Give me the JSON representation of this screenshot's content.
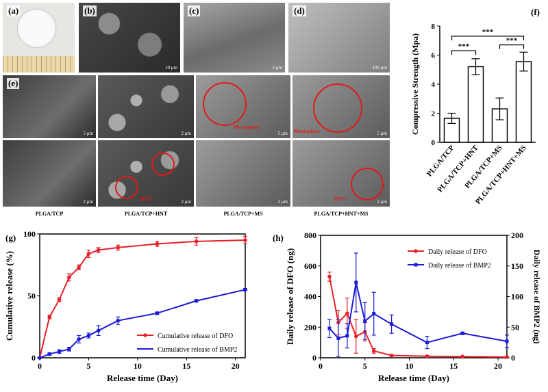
{
  "panels": {
    "a": {
      "label": "(a)"
    },
    "b": {
      "label": "(b)",
      "scale": "10 μm"
    },
    "c": {
      "label": "(c)",
      "scale": "2 μm"
    },
    "d": {
      "label": "(d)",
      "scale": "100 μm"
    },
    "e": {
      "label": "(e)"
    },
    "f": {
      "label": "(f)"
    },
    "g": {
      "label": "(g)"
    },
    "h": {
      "label": "(h)"
    }
  },
  "sem_grid": {
    "tags": {
      "microsphere": "Microsphere",
      "hnts": "HNTs"
    },
    "scales": {
      "s1": "5 μm",
      "s2": "2 μm",
      "s3": "5 μm",
      "s4": "5 μm",
      "s5": "2 μm",
      "s6": "2 μm",
      "s7": "2 μm",
      "s8": "2 μm"
    },
    "captions": [
      "PLGA/TCP",
      "PLGA/TCP+HNT",
      "PLGA/TCP+MS",
      "PLGA/TCP+HNT+MS"
    ]
  },
  "chart_data": [
    {
      "id": "f",
      "type": "bar",
      "categories": [
        "PLGA/TCP",
        "PLGA/TCP+HNT",
        "PLGA/TCP+MS",
        "PLGA/TCP+HNT+MS"
      ],
      "values": [
        1.65,
        5.2,
        2.3,
        5.55
      ],
      "errors": [
        0.35,
        0.55,
        0.75,
        0.65
      ],
      "ylabel": "Compressive Strength (Mpa)",
      "ylim": [
        0,
        8
      ],
      "yticks": [
        "0",
        "2",
        "4",
        "6",
        "8"
      ],
      "significance": "***",
      "colors": {
        "bar": "#ffffff",
        "stroke": "#000000"
      }
    },
    {
      "id": "g",
      "type": "line",
      "xlabel": "Release time (Day)",
      "ylabel": "Cumulative release (%)",
      "xlim": [
        0,
        21
      ],
      "ylim": [
        0,
        100
      ],
      "xticks": [
        "0",
        "5",
        "10",
        "15",
        "20"
      ],
      "yticks": [
        "0",
        "50",
        "100"
      ],
      "legend_position": "bottom-right",
      "series": [
        {
          "name": "Cumulative release of DFO",
          "color": "#e8202a",
          "x": [
            0,
            1,
            2,
            3,
            4,
            5,
            6,
            8,
            12,
            16,
            21
          ],
          "y": [
            0,
            33,
            47,
            65,
            73,
            84,
            87,
            89,
            92,
            94,
            95
          ],
          "err": [
            0,
            1.5,
            1.5,
            3,
            2,
            3,
            2,
            2,
            2,
            3,
            3
          ]
        },
        {
          "name": "Cumulative release of BMP2",
          "color": "#1a1ad8",
          "x": [
            0,
            1,
            2,
            3,
            4,
            5,
            6,
            8,
            12,
            16,
            21
          ],
          "y": [
            0,
            3,
            5,
            7,
            15,
            18,
            22,
            30,
            36,
            46,
            55
          ],
          "err": [
            0,
            1,
            1.5,
            1.5,
            3,
            2,
            4,
            3,
            1,
            1,
            1
          ]
        }
      ]
    },
    {
      "id": "h",
      "type": "line",
      "xlabel": "Release time (Day)",
      "ylabel": "Daily release of DFO (ng)",
      "ylabel_right": "Daily release of BMP2 (ng)",
      "xlim": [
        0,
        21
      ],
      "ylim": [
        0,
        800
      ],
      "ylim_right": [
        0,
        200
      ],
      "xticks": [
        "0",
        "5",
        "10",
        "15",
        "20"
      ],
      "yticks": [
        "0",
        "200",
        "400",
        "600",
        "800"
      ],
      "yticks_right": [
        "0",
        "50",
        "100",
        "150",
        "200"
      ],
      "legend_position": "top-right",
      "series": [
        {
          "name": "Daily release of DFO",
          "color": "#e8202a",
          "axis": "left",
          "x": [
            1,
            2,
            3,
            4,
            5,
            6,
            8,
            12,
            16,
            21
          ],
          "y": [
            530,
            230,
            290,
            140,
            170,
            45,
            15,
            10,
            8,
            5
          ],
          "err": [
            30,
            80,
            100,
            110,
            60,
            15,
            5,
            3,
            3,
            2
          ]
        },
        {
          "name": "Daily release of BMP2",
          "color": "#1a1ad8",
          "axis": "right",
          "x": [
            1,
            2,
            3,
            4,
            5,
            6,
            8,
            12,
            16,
            21
          ],
          "y": [
            48,
            32,
            36,
            123,
            60,
            72,
            55,
            25,
            40,
            27
          ],
          "err": [
            15,
            30,
            20,
            48,
            30,
            35,
            15,
            10,
            2,
            10
          ]
        }
      ]
    }
  ]
}
